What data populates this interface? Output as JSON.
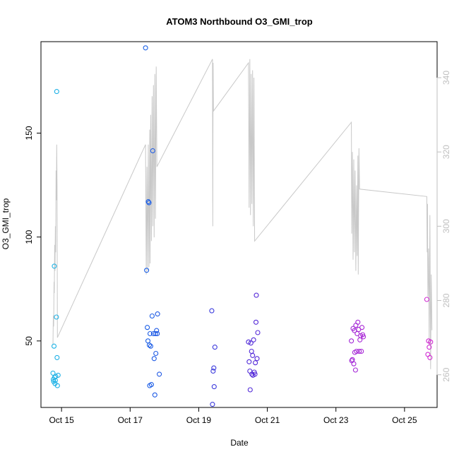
{
  "chart_data": {
    "type": "scatter",
    "title": "ATOM3 Northbound O3_GMI_trop",
    "xlabel": "Date",
    "ylabel": "O3_GMI_trop",
    "x_unit": "days",
    "x_ticks": [
      {
        "value": 15,
        "label": "Oct 15"
      },
      {
        "value": 17,
        "label": "Oct 17"
      },
      {
        "value": 19,
        "label": "Oct 19"
      },
      {
        "value": 21,
        "label": "Oct 21"
      },
      {
        "value": 23,
        "label": "Oct 23"
      },
      {
        "value": 25,
        "label": "Oct 25"
      }
    ],
    "xlim": [
      14.4,
      25.95
    ],
    "ylim": [
      18,
      194
    ],
    "y_ticks": [
      50,
      100,
      150
    ],
    "y2lim": [
      251.2,
      349.7
    ],
    "y2_ticks": [
      260,
      280,
      300,
      320,
      340
    ],
    "colors": {
      "axis": "#000000",
      "secondary_axis": "#bfbfbf",
      "line": "#c8c8c8",
      "gradient": [
        "#1eb4e6",
        "#1a5ee6",
        "#4a2ad8",
        "#9a28d8",
        "#d22ad2"
      ]
    },
    "series": [
      {
        "kind": "points",
        "axis": "left",
        "points": [
          [
            14.75,
            34.5
          ],
          [
            14.76,
            31.5
          ],
          [
            14.77,
            30.5
          ],
          [
            14.78,
            47.5
          ],
          [
            14.79,
            86.0
          ],
          [
            14.8,
            32.5
          ],
          [
            14.81,
            29.5
          ],
          [
            14.82,
            31.0
          ],
          [
            14.83,
            33.0
          ],
          [
            14.85,
            61.5
          ],
          [
            14.86,
            170.0
          ],
          [
            14.87,
            42.0
          ],
          [
            14.88,
            28.5
          ],
          [
            14.9,
            33.5
          ],
          [
            17.45,
            191.0
          ],
          [
            17.48,
            84.0
          ],
          [
            17.5,
            56.5
          ],
          [
            17.52,
            50.0
          ],
          [
            17.53,
            117.0
          ],
          [
            17.55,
            116.5
          ],
          [
            17.56,
            48.0
          ],
          [
            17.57,
            28.5
          ],
          [
            17.58,
            53.5
          ],
          [
            17.6,
            47.5
          ],
          [
            17.62,
            29.0
          ],
          [
            17.64,
            62.0
          ],
          [
            17.66,
            141.5
          ],
          [
            17.68,
            53.5
          ],
          [
            17.7,
            41.5
          ],
          [
            17.72,
            24.0
          ],
          [
            17.74,
            53.5
          ],
          [
            17.75,
            44.0
          ],
          [
            17.77,
            55.0
          ],
          [
            17.79,
            53.5
          ],
          [
            17.8,
            63.0
          ],
          [
            17.85,
            34.0
          ],
          [
            19.38,
            64.5
          ],
          [
            19.4,
            19.5
          ],
          [
            19.42,
            35.5
          ],
          [
            19.44,
            37.0
          ],
          [
            19.45,
            28.0
          ],
          [
            19.47,
            47.0
          ],
          [
            20.45,
            49.5
          ],
          [
            20.47,
            40.0
          ],
          [
            20.49,
            35.5
          ],
          [
            20.5,
            26.5
          ],
          [
            20.52,
            49.0
          ],
          [
            20.54,
            45.0
          ],
          [
            20.55,
            34.0
          ],
          [
            20.57,
            43.0
          ],
          [
            20.58,
            33.5
          ],
          [
            20.6,
            50.5
          ],
          [
            20.62,
            35.0
          ],
          [
            20.64,
            34.0
          ],
          [
            20.65,
            39.5
          ],
          [
            20.67,
            59.0
          ],
          [
            20.68,
            72.0
          ],
          [
            20.7,
            41.5
          ],
          [
            20.72,
            54.0
          ],
          [
            23.45,
            50.0
          ],
          [
            23.46,
            40.5
          ],
          [
            23.48,
            41.0
          ],
          [
            23.5,
            56.0
          ],
          [
            23.52,
            39.0
          ],
          [
            23.54,
            55.0
          ],
          [
            23.55,
            44.5
          ],
          [
            23.57,
            36.0
          ],
          [
            23.58,
            57.5
          ],
          [
            23.6,
            45.0
          ],
          [
            23.62,
            53.5
          ],
          [
            23.64,
            59.0
          ],
          [
            23.66,
            55.5
          ],
          [
            23.68,
            45.0
          ],
          [
            23.7,
            50.5
          ],
          [
            23.72,
            52.5
          ],
          [
            23.74,
            45.0
          ],
          [
            23.76,
            56.5
          ],
          [
            23.78,
            53.0
          ],
          [
            23.8,
            52.0
          ],
          [
            25.65,
            70.0
          ],
          [
            25.68,
            43.5
          ],
          [
            25.7,
            50.0
          ],
          [
            25.72,
            47.0
          ],
          [
            25.74,
            42.0
          ],
          [
            25.76,
            49.5
          ]
        ]
      },
      {
        "kind": "line",
        "axis": "right",
        "points": [
          [
            14.75,
            268.0
          ],
          [
            14.76,
            276.0
          ],
          [
            14.77,
            273.0
          ],
          [
            14.78,
            285.0
          ],
          [
            14.79,
            282.0
          ],
          [
            14.8,
            295.0
          ],
          [
            14.81,
            288.0
          ],
          [
            14.82,
            300.0
          ],
          [
            14.83,
            293.0
          ],
          [
            14.84,
            315.0
          ],
          [
            14.85,
            307.0
          ],
          [
            14.86,
            322.0
          ],
          [
            14.87,
            311.0
          ],
          [
            14.88,
            270.0
          ],
          [
            17.45,
            322.0
          ],
          [
            17.47,
            287.0
          ],
          [
            17.49,
            316.0
          ],
          [
            17.51,
            288.0
          ],
          [
            17.53,
            322.0
          ],
          [
            17.55,
            289.0
          ],
          [
            17.57,
            326.0
          ],
          [
            17.58,
            290.0
          ],
          [
            17.6,
            330.0
          ],
          [
            17.62,
            296.0
          ],
          [
            17.64,
            335.0
          ],
          [
            17.66,
            300.0
          ],
          [
            17.68,
            338.0
          ],
          [
            17.7,
            297.0
          ],
          [
            17.72,
            341.0
          ],
          [
            17.74,
            302.0
          ],
          [
            17.76,
            343.0
          ],
          [
            17.78,
            316.0
          ],
          [
            19.4,
            345.0
          ],
          [
            19.41,
            300.0
          ],
          [
            19.42,
            344.0
          ],
          [
            19.43,
            331.0
          ],
          [
            20.45,
            344.0
          ],
          [
            20.47,
            305.0
          ],
          [
            20.49,
            345.0
          ],
          [
            20.51,
            303.0
          ],
          [
            20.53,
            341.0
          ],
          [
            20.55,
            306.0
          ],
          [
            20.57,
            342.0
          ],
          [
            20.59,
            300.0
          ],
          [
            20.61,
            340.0
          ],
          [
            20.63,
            296.0
          ],
          [
            23.45,
            328.0
          ],
          [
            23.46,
            298.0
          ],
          [
            23.48,
            320.0
          ],
          [
            23.5,
            291.0
          ],
          [
            23.52,
            318.0
          ],
          [
            23.54,
            293.0
          ],
          [
            23.56,
            315.0
          ],
          [
            23.58,
            288.0
          ],
          [
            23.6,
            311.0
          ],
          [
            23.62,
            292.0
          ],
          [
            23.64,
            319.0
          ],
          [
            23.65,
            287.0
          ],
          [
            23.67,
            321.0
          ],
          [
            23.69,
            310.0
          ],
          [
            25.65,
            308.0
          ],
          [
            25.66,
            293.0
          ],
          [
            25.67,
            306.0
          ],
          [
            25.68,
            281.0
          ],
          [
            25.7,
            294.0
          ],
          [
            25.72,
            268.0
          ],
          [
            25.74,
            303.0
          ],
          [
            25.76,
            261.5
          ],
          [
            25.78,
            287.0
          ],
          [
            25.8,
            272.0
          ]
        ]
      }
    ]
  }
}
